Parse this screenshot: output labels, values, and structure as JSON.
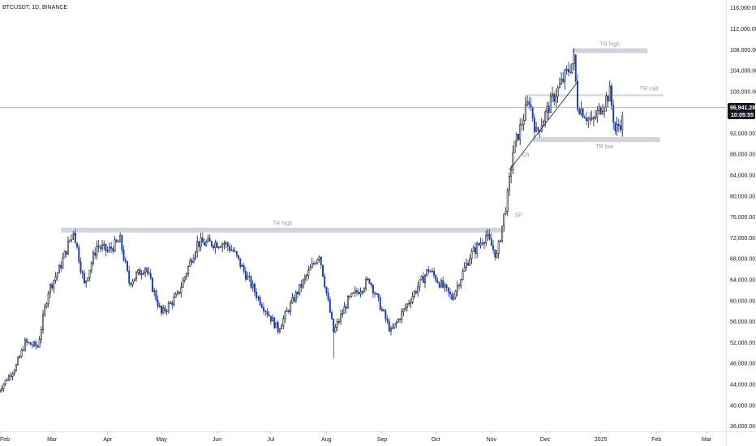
{
  "header": {
    "symbol_line": "BTCUSDT, 1D, BINANCE"
  },
  "price_axis": {
    "ticks": [
      "116,000.00",
      "112,000.00",
      "108,000.00",
      "104,000.00",
      "100,000.00",
      "96,000.00",
      "92,000.00",
      "88,000.00",
      "84,000.00",
      "80,000.00",
      "76,000.00",
      "72,000.00",
      "68,000.00",
      "64,000.00",
      "60,000.00",
      "56,000.00",
      "52,000.00",
      "48,000.00",
      "44,000.00",
      "40,000.00",
      "36,000.00"
    ],
    "values": [
      116000,
      112000,
      108000,
      104000,
      100000,
      96000,
      92000,
      88000,
      84000,
      80000,
      76000,
      72000,
      68000,
      64000,
      60000,
      56000,
      52000,
      48000,
      44000,
      40000,
      36000
    ]
  },
  "time_axis": {
    "labels": [
      "Feb",
      "Mar",
      "Apr",
      "May",
      "Jun",
      "Jul",
      "Aug",
      "Sep",
      "Oct",
      "Nov",
      "Dec",
      "2025",
      "Feb",
      "Mar"
    ],
    "dates": [
      "2024-02-01",
      "2024-03-01",
      "2024-04-01",
      "2024-05-01",
      "2024-06-01",
      "2024-07-01",
      "2024-08-01",
      "2024-09-01",
      "2024-10-01",
      "2024-11-01",
      "2024-12-01",
      "2025-01-01",
      "2025-02-01",
      "2025-03-01"
    ]
  },
  "current_price": {
    "price_label": "96,941.28",
    "countdown": "10:05:55",
    "value": 96941.28
  },
  "colors": {
    "up": "#131722",
    "down": "#1e3fa8",
    "zone": "#d1d4dc",
    "price_line": "#9598a1",
    "price_tag": "#131722"
  },
  "annotations": [
    {
      "text": "TR high",
      "value": 73500,
      "start": "2024-03-06",
      "end": "2024-11-08"
    },
    {
      "text": "TR high",
      "value": 107800,
      "start": "2024-12-16",
      "end": "2025-01-27"
    },
    {
      "text": "TR mid",
      "value": 99300,
      "start": "2024-11-20",
      "end": "2025-02-05"
    },
    {
      "text": "TR low",
      "value": 90800,
      "start": "2024-11-24",
      "end": "2025-02-03"
    },
    {
      "text": "Ch",
      "value": 88000
    },
    {
      "text": "SP",
      "value": 76000
    }
  ],
  "chart_data": {
    "type": "candlestick",
    "title": "BTCUSDT, 1D, BINANCE",
    "x_range": [
      "2024-02-01",
      "2025-03-05"
    ],
    "ylim": [
      35000,
      117500
    ],
    "grid": false,
    "trendline": {
      "from": {
        "date": "2024-11-11",
        "value": 85000
      },
      "to": {
        "date": "2024-12-19",
        "value": 101800
      }
    },
    "anchor_points": [
      {
        "date": "2024-01-31",
        "value": 42700
      },
      {
        "date": "2024-02-10",
        "value": 47500
      },
      {
        "date": "2024-02-15",
        "value": 52000
      },
      {
        "date": "2024-02-22",
        "value": 51200
      },
      {
        "date": "2024-02-28",
        "value": 62000
      },
      {
        "date": "2024-03-05",
        "value": 66000
      },
      {
        "date": "2024-03-13",
        "value": 73500
      },
      {
        "date": "2024-03-19",
        "value": 63000
      },
      {
        "date": "2024-03-26",
        "value": 70500
      },
      {
        "date": "2024-04-01",
        "value": 69500
      },
      {
        "date": "2024-04-08",
        "value": 71500
      },
      {
        "date": "2024-04-13",
        "value": 63500
      },
      {
        "date": "2024-04-22",
        "value": 66500
      },
      {
        "date": "2024-05-01",
        "value": 57500
      },
      {
        "date": "2024-05-10",
        "value": 61000
      },
      {
        "date": "2024-05-21",
        "value": 71000
      },
      {
        "date": "2024-06-05",
        "value": 71000
      },
      {
        "date": "2024-06-10",
        "value": 69500
      },
      {
        "date": "2024-06-24",
        "value": 60500
      },
      {
        "date": "2024-07-05",
        "value": 54500
      },
      {
        "date": "2024-07-14",
        "value": 60500
      },
      {
        "date": "2024-07-28",
        "value": 69000
      },
      {
        "date": "2024-08-05",
        "value": 54000
      },
      {
        "date": "2024-08-13",
        "value": 60000
      },
      {
        "date": "2024-08-25",
        "value": 64000
      },
      {
        "date": "2024-09-06",
        "value": 54000
      },
      {
        "date": "2024-09-18",
        "value": 61000
      },
      {
        "date": "2024-09-27",
        "value": 66000
      },
      {
        "date": "2024-10-10",
        "value": 60500
      },
      {
        "date": "2024-10-20",
        "value": 68500
      },
      {
        "date": "2024-10-29",
        "value": 72500
      },
      {
        "date": "2024-11-04",
        "value": 68500
      },
      {
        "date": "2024-11-10",
        "value": 80000
      },
      {
        "date": "2024-11-13",
        "value": 88500
      },
      {
        "date": "2024-11-22",
        "value": 98500
      },
      {
        "date": "2024-11-26",
        "value": 92000
      },
      {
        "date": "2024-12-05",
        "value": 98500
      },
      {
        "date": "2024-12-17",
        "value": 106000
      },
      {
        "date": "2024-12-19",
        "value": 97500
      },
      {
        "date": "2024-12-27",
        "value": 94000
      },
      {
        "date": "2025-01-06",
        "value": 99800
      },
      {
        "date": "2025-01-09",
        "value": 92500
      },
      {
        "date": "2025-01-13",
        "value": 94500
      }
    ],
    "extremes": [
      {
        "date": "2024-03-14",
        "high": 73800
      },
      {
        "date": "2024-08-05",
        "low": 49000
      },
      {
        "date": "2024-12-17",
        "high": 108300
      }
    ]
  }
}
